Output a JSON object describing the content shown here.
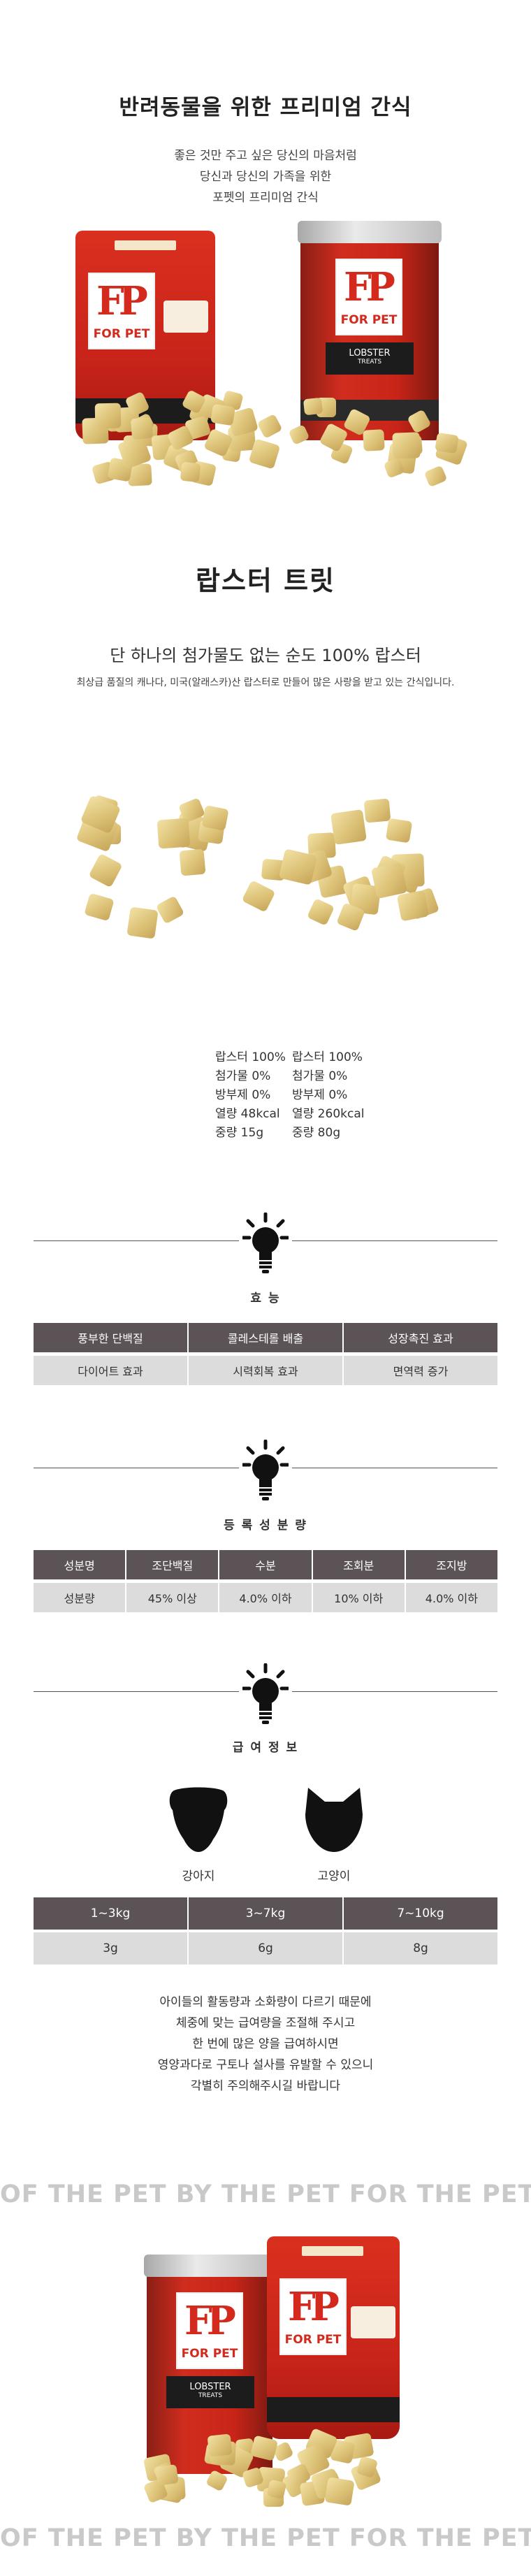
{
  "hero": {
    "title": "반려동물을 위한 프리미엄 간식",
    "subtitle_lines": [
      "좋은 것만 주고 싶은 당신의 마음처럼",
      "당신과 당신의 가족을 위한",
      "포펫의 프리미엄 간식"
    ]
  },
  "product": {
    "name": "랍스터 트릿",
    "tagline": "단 하나의 첨가물도 없는 순도 100% 랍스터",
    "description": "최상급 품질의 캐나다, 미국(알래스카)산 랍스터로 만들어 많은 사랑을 받고 있는 간식입니다."
  },
  "packaging": {
    "brand_logo": "FP",
    "brand_name": "FOR PET",
    "can_label": "LOBSTER",
    "can_sublabel": "TREATS"
  },
  "nutrition": {
    "bag": [
      "랍스터 100%",
      "첨가물 0%",
      "방부제 0%",
      "열량 48kcal",
      "중량 15g"
    ],
    "can": [
      "랍스터 100%",
      "첨가물 0%",
      "방부제 0%",
      "열량 260kcal",
      "중량 80g"
    ]
  },
  "efficacy": {
    "title": "효 능",
    "row1": [
      "풍부한 단백질",
      "콜레스테롤 배출",
      "성장촉진 효과"
    ],
    "row2": [
      "다이어트 효과",
      "시력회복 효과",
      "면역력 증가"
    ]
  },
  "registration": {
    "title": "등 록 성 분 량",
    "headers": [
      "성분명",
      "조단백질",
      "수분",
      "조회분",
      "조지방"
    ],
    "values": [
      "성분량",
      "45% 이상",
      "4.0% 이하",
      "10% 이하",
      "4.0% 이하"
    ]
  },
  "feeding": {
    "title": "급 여 정 보",
    "dog_label": "강아지",
    "cat_label": "고양이",
    "weights": [
      "1~3kg",
      "3~7kg",
      "7~10kg"
    ],
    "amounts": [
      "3g",
      "6g",
      "8g"
    ]
  },
  "notice_lines": [
    "아이들의 활동량과 소화량이 다르기 때문에",
    "체중에 맞는 급여량을 조절해 주시고",
    "한 번에 많은 양을 급여하시면",
    "영양과다로 구토나 설사를 유발할 수 있으니",
    "각별히 주의해주시길 바랍니다"
  ],
  "banner_text": "OF THE PET BY THE PET FOR THE PET",
  "colors": {
    "brand_red": "#d32a1d",
    "table_dark": "#5b5355",
    "table_light": "#dcdcdc",
    "banner_gray": "#c9c9c9"
  },
  "icons": {
    "bulb": "lightbulb-icon",
    "dog": "dog-icon",
    "cat": "cat-icon"
  }
}
